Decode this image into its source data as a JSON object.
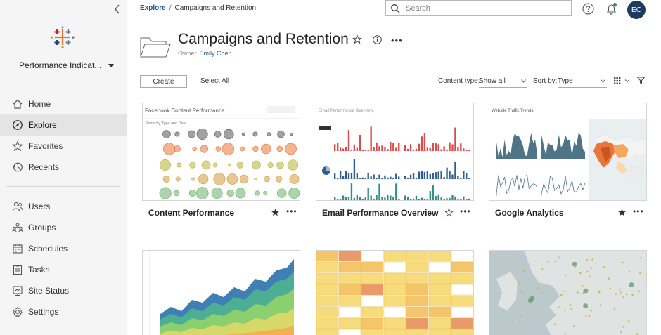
{
  "sidebar": {
    "site_name": "Performance Indicat...",
    "nav_primary": [
      {
        "label": "Home",
        "icon": "home-icon"
      },
      {
        "label": "Explore",
        "icon": "explore-icon",
        "active": true
      },
      {
        "label": "Favorites",
        "icon": "star-icon"
      },
      {
        "label": "Recents",
        "icon": "clock-icon"
      }
    ],
    "nav_secondary": [
      {
        "label": "Users",
        "icon": "users-icon"
      },
      {
        "label": "Groups",
        "icon": "groups-icon"
      },
      {
        "label": "Schedules",
        "icon": "calendar-icon"
      },
      {
        "label": "Tasks",
        "icon": "tasks-icon"
      },
      {
        "label": "Site Status",
        "icon": "site-status-icon"
      },
      {
        "label": "Settings",
        "icon": "gear-icon"
      }
    ]
  },
  "topbar": {
    "breadcrumb": {
      "link": "Explore",
      "current": "Campaigns and Retention"
    },
    "search_placeholder": "Search",
    "avatar_initials": "EC"
  },
  "header": {
    "title": "Campaigns and Retention",
    "owner_label": "Owner",
    "owner_name": "Emily Chen"
  },
  "toolbar": {
    "create_label": "Create",
    "select_all_label": "Select All",
    "content_type_label": "Content type:",
    "content_type_value": "Show all",
    "sort_label": "Sort by:",
    "sort_value": "Type"
  },
  "cards": [
    {
      "title": "Content Performance",
      "favorited": true
    },
    {
      "title": "Email Performance Overview",
      "favorited": false
    },
    {
      "title": "Google Analytics",
      "favorited": true
    },
    {
      "title": "",
      "favorited": false
    },
    {
      "title": "",
      "favorited": false
    },
    {
      "title": "",
      "favorited": false
    }
  ],
  "thumbnails": {
    "content_performance": {
      "title": "Facebook Content Performance",
      "subtitle": "Posts by Type and Date"
    },
    "email_overview": {
      "title": "Email Performance Overview"
    },
    "google_analytics": {
      "title": "Website Traffic Trends"
    }
  },
  "colors": {
    "accent_link": "#1f5a96",
    "avatar_bg": "#1e3a5f",
    "notification_dot": "#2b8a6f"
  }
}
